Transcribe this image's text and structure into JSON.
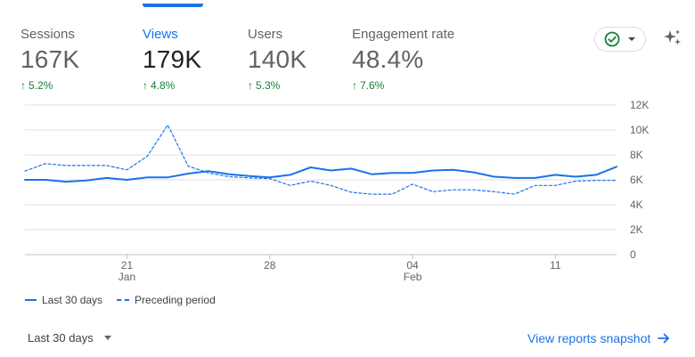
{
  "metrics": [
    {
      "label": "Sessions",
      "value": "167K",
      "delta": "5.2%"
    },
    {
      "label": "Views",
      "value": "179K",
      "delta": "4.8%"
    },
    {
      "label": "Users",
      "value": "140K",
      "delta": "5.3%"
    },
    {
      "label": "Engagement rate",
      "value": "48.4%",
      "delta": "7.6%"
    }
  ],
  "status_icon": "check-circle-icon",
  "insights_icon": "sparkle-icon",
  "legend": {
    "current": "Last 30 days",
    "previous": "Preceding period"
  },
  "footer": {
    "date_range": "Last 30 days",
    "snapshot_link": "View reports snapshot"
  },
  "colors": {
    "accent": "#1a73e8",
    "positive": "#188038",
    "grid": "#e0e0e0"
  },
  "chart_data": {
    "type": "line",
    "x_tick_labels": [
      {
        "index": 5,
        "label": "21",
        "sublabel": "Jan"
      },
      {
        "index": 12,
        "label": "28",
        "sublabel": ""
      },
      {
        "index": 19,
        "label": "04",
        "sublabel": "Feb"
      },
      {
        "index": 26,
        "label": "11",
        "sublabel": ""
      }
    ],
    "y_axis": {
      "min": 0,
      "max": 12000,
      "ticks": [
        0,
        2000,
        4000,
        6000,
        8000,
        10000,
        12000
      ],
      "tick_labels": [
        "0",
        "2K",
        "4K",
        "6K",
        "8K",
        "10K",
        "12K"
      ],
      "position": "right"
    },
    "grid": true,
    "series": [
      {
        "name": "Last 30 days",
        "style": "solid",
        "values": [
          6000,
          6000,
          5850,
          5950,
          6150,
          6000,
          6200,
          6200,
          6500,
          6700,
          6450,
          6300,
          6200,
          6400,
          7000,
          6750,
          6900,
          6450,
          6550,
          6550,
          6750,
          6800,
          6600,
          6250,
          6150,
          6150,
          6400,
          6250,
          6400,
          7050
        ]
      },
      {
        "name": "Preceding period",
        "style": "dashed",
        "values": [
          6700,
          7300,
          7150,
          7150,
          7150,
          6800,
          7900,
          10400,
          7100,
          6550,
          6250,
          6150,
          6100,
          5550,
          5900,
          5550,
          5000,
          4850,
          4850,
          5650,
          5050,
          5200,
          5200,
          5050,
          4850,
          5550,
          5550,
          5900,
          5950,
          5950
        ]
      }
    ]
  }
}
